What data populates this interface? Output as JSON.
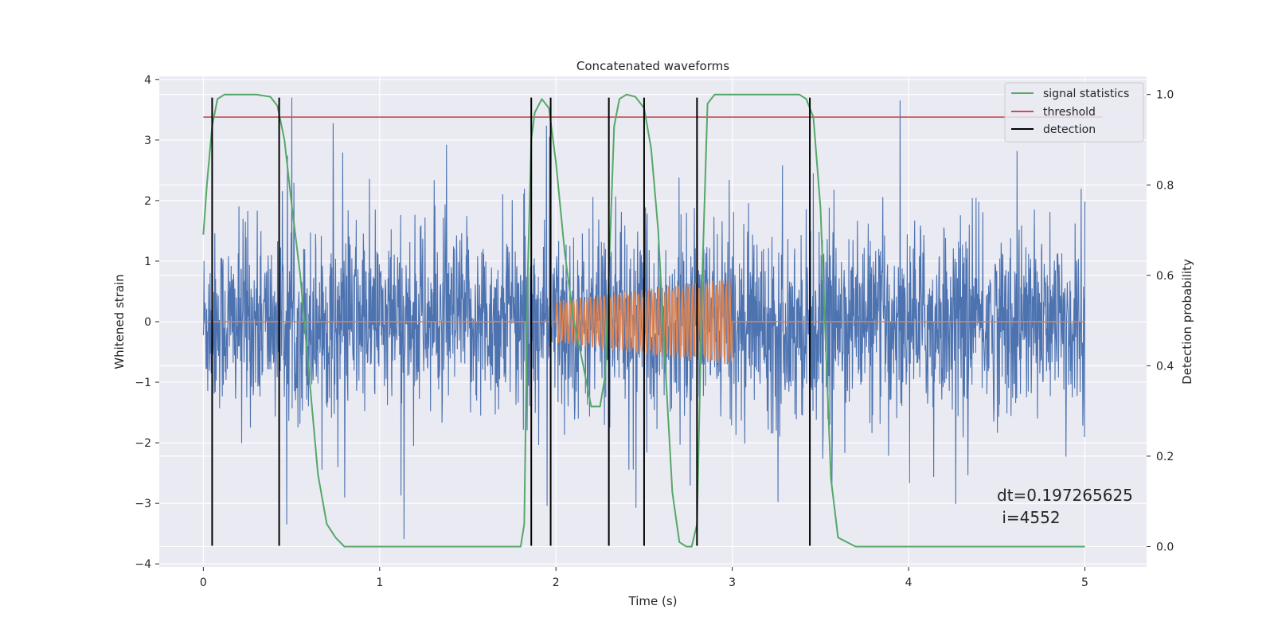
{
  "chart_data": {
    "type": "line",
    "title": "Concatenated waveforms",
    "xlabel": "Time (s)",
    "ylabel": "Whitened strain",
    "ylabel_right": "Detection probability",
    "xlim": [
      -0.25,
      5.35
    ],
    "ylim": [
      -4.05,
      4.05
    ],
    "ylim_right": [
      -0.045,
      1.04
    ],
    "xticks": [
      0,
      1,
      2,
      3,
      4,
      5
    ],
    "xtick_labels": [
      "0",
      "1",
      "2",
      "3",
      "4",
      "5"
    ],
    "yticks": [
      -4,
      -3,
      -2,
      -1,
      0,
      1,
      2,
      3,
      4
    ],
    "ytick_labels": [
      "−4",
      "−3",
      "−2",
      "−1",
      "0",
      "1",
      "2",
      "3",
      "4"
    ],
    "yticks_right": [
      0.0,
      0.2,
      0.4,
      0.6,
      0.8,
      1.0
    ],
    "ytick_right_labels": [
      "0.0",
      "0.2",
      "0.4",
      "0.6",
      "0.8",
      "1.0"
    ],
    "grid": true,
    "legend_position": "top-right",
    "legend": [
      {
        "label": "signal statistics",
        "color": "#55a868"
      },
      {
        "label": "threshold",
        "color": "#c44e52"
      },
      {
        "label": "detection",
        "color": "#000000"
      }
    ],
    "colors": {
      "strain": "#4c72b0",
      "injection": "#dd8452",
      "statistics": "#55a868",
      "threshold": "#c44e52",
      "detection": "#000000",
      "background": "#eaeaf2"
    },
    "strain_series": {
      "x_range": [
        0,
        5
      ],
      "noise_std": 0.72,
      "peak_range": [
        -3.7,
        3.7
      ]
    },
    "injection_series": {
      "x_range": [
        2.0,
        3.0
      ],
      "amplitude_start": 0.35,
      "amplitude_end": 0.72,
      "cycles": 52
    },
    "threshold": {
      "value": 0.95,
      "x_range": [
        0,
        5.1
      ]
    },
    "detections_x": [
      0.05,
      0.43,
      1.86,
      1.97,
      2.3,
      2.5,
      2.8,
      3.44
    ],
    "detection_y_range": [
      -3.7,
      3.7
    ],
    "signal_statistics": {
      "x": [
        0.0,
        0.02,
        0.05,
        0.08,
        0.12,
        0.2,
        0.3,
        0.38,
        0.42,
        0.46,
        0.5,
        0.55,
        0.6,
        0.65,
        0.7,
        0.75,
        0.8,
        0.9,
        1.2,
        1.5,
        1.8,
        1.82,
        1.84,
        1.86,
        1.88,
        1.92,
        1.96,
        2.0,
        2.05,
        2.1,
        2.15,
        2.2,
        2.25,
        2.28,
        2.3,
        2.33,
        2.36,
        2.4,
        2.45,
        2.5,
        2.54,
        2.58,
        2.62,
        2.66,
        2.7,
        2.74,
        2.77,
        2.8,
        2.83,
        2.86,
        2.9,
        3.0,
        3.2,
        3.38,
        3.42,
        3.46,
        3.5,
        3.53,
        3.56,
        3.6,
        3.7,
        4.0,
        4.5,
        5.0
      ],
      "y": [
        0.69,
        0.8,
        0.93,
        0.99,
        1.0,
        1.0,
        1.0,
        0.995,
        0.975,
        0.9,
        0.76,
        0.6,
        0.38,
        0.16,
        0.05,
        0.02,
        0.0,
        0.0,
        0.0,
        0.0,
        0.0,
        0.05,
        0.6,
        0.9,
        0.96,
        0.99,
        0.97,
        0.85,
        0.65,
        0.5,
        0.41,
        0.31,
        0.31,
        0.38,
        0.6,
        0.93,
        0.99,
        1.0,
        0.995,
        0.97,
        0.88,
        0.7,
        0.4,
        0.12,
        0.01,
        0.0,
        0.0,
        0.05,
        0.6,
        0.98,
        1.0,
        1.0,
        1.0,
        1.0,
        0.99,
        0.95,
        0.75,
        0.45,
        0.15,
        0.02,
        0.0,
        0.0,
        0.0,
        0.0
      ]
    },
    "annotation": {
      "line1": "dt=0.197265625",
      "line2": " i=4552",
      "x": 4.5,
      "y": -3.0
    }
  }
}
